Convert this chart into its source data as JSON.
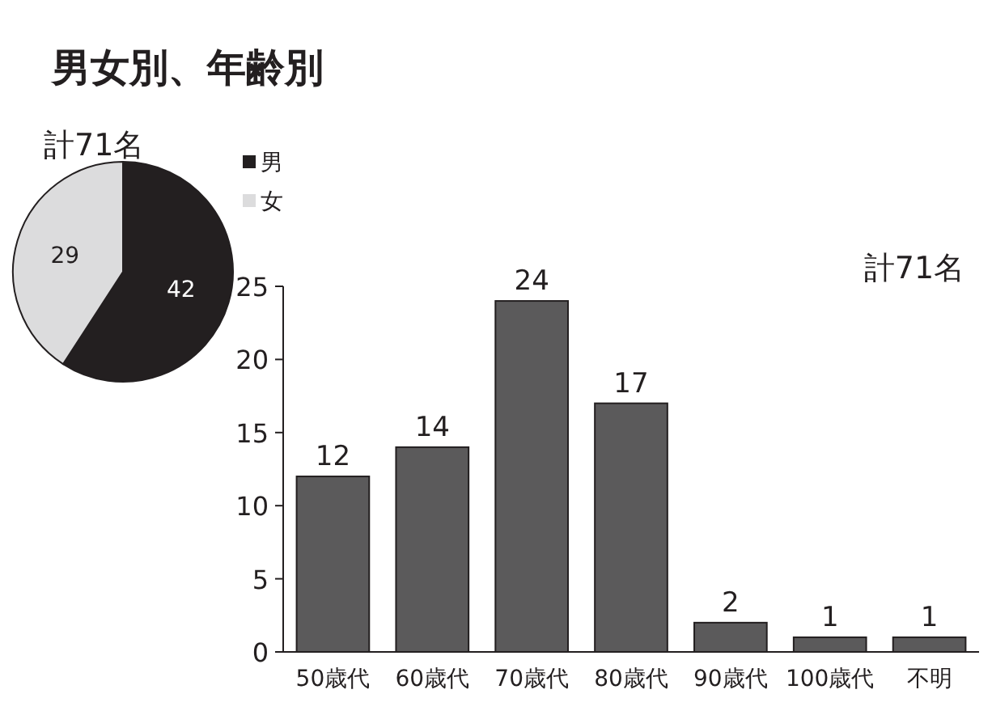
{
  "chart_data": [
    {
      "type": "pie",
      "title": "男女別、年齢別",
      "subtitle": "計71名",
      "categories": [
        "男",
        "女"
      ],
      "values": [
        42,
        29
      ],
      "colors": [
        "#231f20",
        "#dcdcdd"
      ],
      "data_labels": true,
      "legend": "top right"
    },
    {
      "type": "bar",
      "annotations": [
        "計71名"
      ],
      "categories": [
        "50歳代",
        "60歳代",
        "70歳代",
        "80歳代",
        "90歳代",
        "100歳代",
        "不明"
      ],
      "values": [
        12,
        14,
        24,
        17,
        2,
        1,
        1
      ],
      "color": "#5b5a5b",
      "ylim": [
        0,
        25
      ],
      "yticks": [
        0,
        5,
        10,
        15,
        20,
        25
      ],
      "data_labels": true
    }
  ]
}
